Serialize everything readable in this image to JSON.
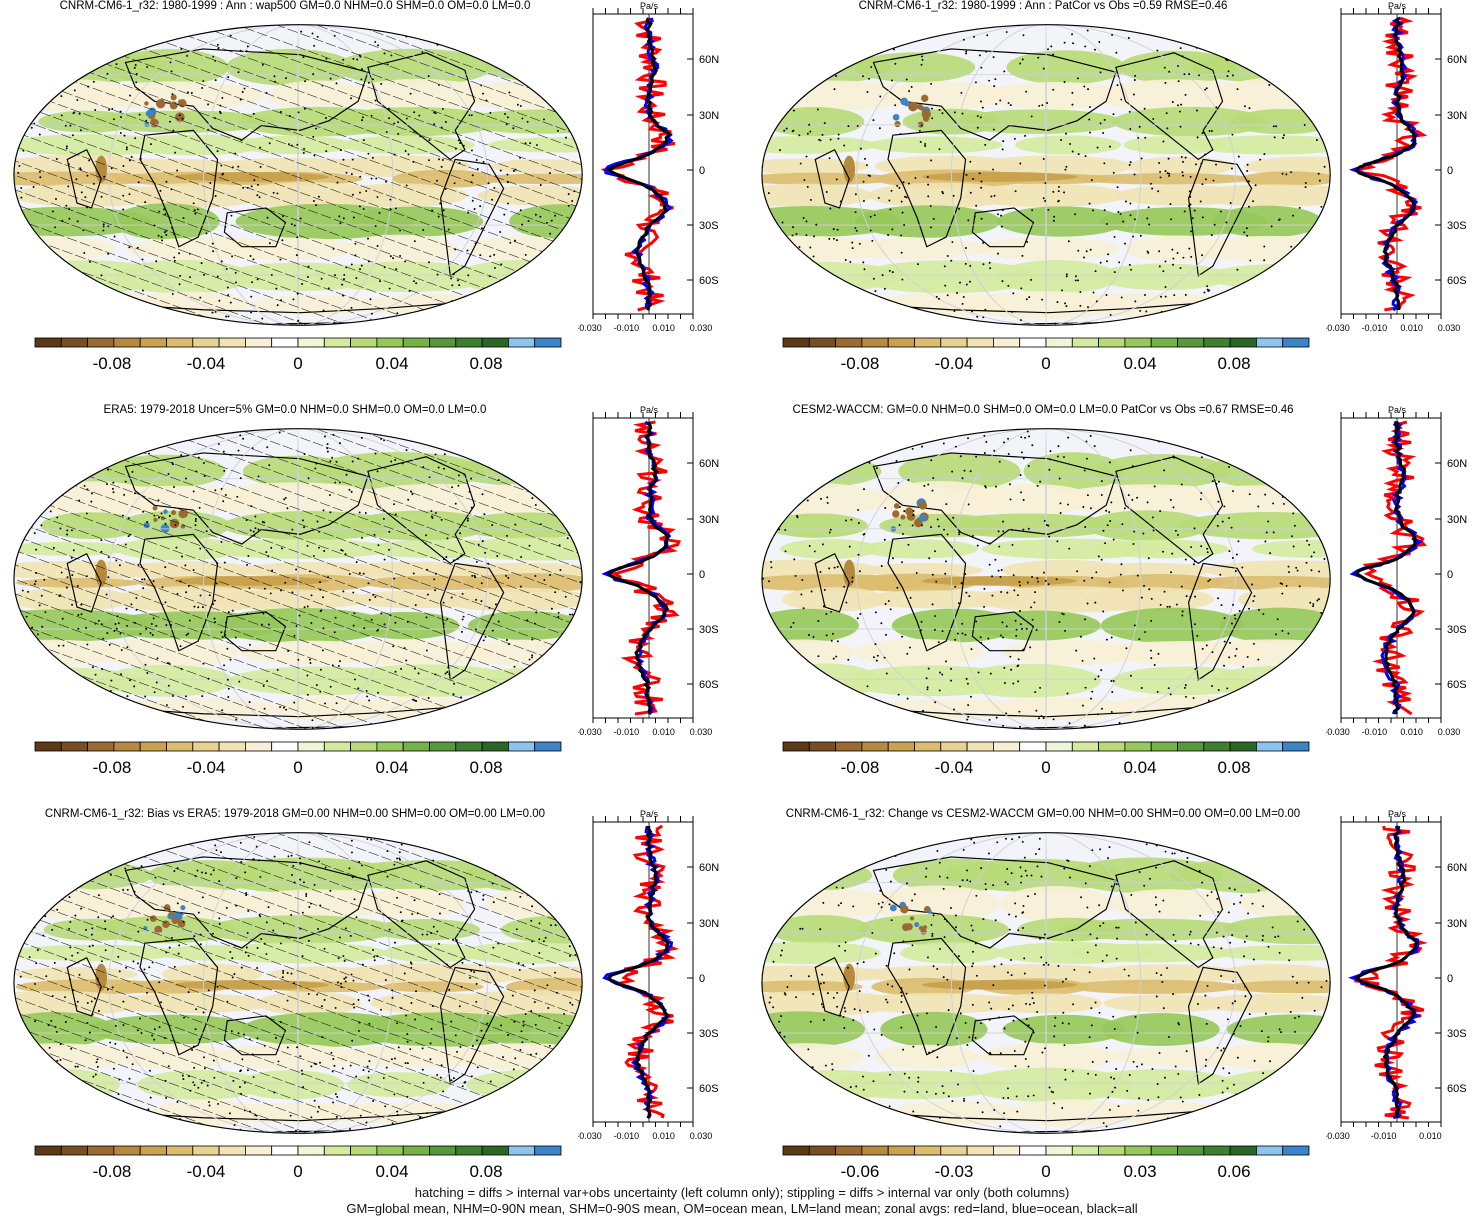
{
  "colors": {
    "land": "#ff0000",
    "ocean": "#0000ff",
    "all": "#000000",
    "ocean_fill": "#f3f4fa",
    "palette": [
      "#5c3a18",
      "#7a4e25",
      "#9a6a32",
      "#b58a3e",
      "#c9a24e",
      "#dcbd6e",
      "#e8d292",
      "#f1e3b4",
      "#f8f0d6",
      "#ffffff",
      "#eef7d8",
      "#d4ea9f",
      "#b7da76",
      "#97c85a",
      "#76b347",
      "#57983a",
      "#3f7f30",
      "#2c6626",
      "#8cc4ee",
      "#3c84c8"
    ]
  },
  "units": "Pa/s",
  "panels": [
    {
      "id": "p1",
      "title": "CNRM-CM6-1_r32: 1980-1999 : Ann : wap500 GM=0.0 NHM=0.0 SHM=0.0 OM=0.0 LM=0.0",
      "hatch": true,
      "zonal_ticks": [
        "-0.030",
        "-0.010",
        "0.010",
        "0.030"
      ],
      "cbar_labels": [
        "-0.08",
        "-0.04",
        "0",
        "0.04",
        "0.08"
      ],
      "lat_labels": [
        "60N",
        "30N",
        "0",
        "30S",
        "60S"
      ]
    },
    {
      "id": "p2",
      "title": "CNRM-CM6-1_r32: 1980-1999 : Ann : PatCor vs Obs =0.59 RMSE=0.46",
      "hatch": false,
      "zonal_ticks": [
        "-0.030",
        "-0.010",
        "0.010",
        "0.030"
      ],
      "cbar_labels": [
        "-0.08",
        "-0.04",
        "0",
        "0.04",
        "0.08"
      ],
      "lat_labels": [
        "60N",
        "30N",
        "0",
        "30S",
        "60S"
      ]
    },
    {
      "id": "p3",
      "title": "ERA5: 1979-2018 Uncer=5% GM=0.0 NHM=0.0 SHM=0.0 OM=0.0 LM=0.0",
      "hatch": true,
      "zonal_ticks": [
        "-0.030",
        "-0.010",
        "0.010",
        "0.030"
      ],
      "cbar_labels": [
        "-0.08",
        "-0.04",
        "0",
        "0.04",
        "0.08"
      ],
      "lat_labels": [
        "60N",
        "30N",
        "0",
        "30S",
        "60S"
      ]
    },
    {
      "id": "p4",
      "title": "CESM2-WACCM: GM=0.0 NHM=0.0 SHM=0.0 OM=0.0 LM=0.0 PatCor vs Obs =0.67 RMSE=0.46",
      "hatch": false,
      "zonal_ticks": [
        "-0.030",
        "-0.010",
        "0.010",
        "0.030"
      ],
      "cbar_labels": [
        "-0.08",
        "-0.04",
        "0",
        "0.04",
        "0.08"
      ],
      "lat_labels": [
        "60N",
        "30N",
        "0",
        "30S",
        "60S"
      ]
    },
    {
      "id": "p5",
      "title": "CNRM-CM6-1_r32: Bias vs ERA5: 1979-2018 GM=0.00 NHM=0.00 SHM=0.00 OM=0.00 LM=0.00",
      "hatch": true,
      "zonal_ticks": [
        "-0.030",
        "-0.010",
        "0.010",
        "0.030"
      ],
      "cbar_labels": [
        "-0.08",
        "-0.04",
        "0",
        "0.04",
        "0.08"
      ],
      "lat_labels": [
        "60N",
        "30N",
        "0",
        "30S",
        "60S"
      ]
    },
    {
      "id": "p6",
      "title": "CNRM-CM6-1_r32: Change vs CESM2-WACCM GM=0.00 NHM=0.00 SHM=0.00 OM=0.00 LM=0.00",
      "hatch": false,
      "zonal_ticks": [
        "-0.030",
        "-0.010",
        "0.010"
      ],
      "cbar_labels": [
        "-0.06",
        "-0.03",
        "0",
        "0.03",
        "0.06"
      ],
      "lat_labels": [
        "60N",
        "30N",
        "0",
        "30S",
        "60S"
      ]
    }
  ],
  "footer": {
    "line1": "hatching = diffs > internal var+obs uncertainty (left column only); stippling = diffs > internal var only (both columns)",
    "line2": "GM=global mean, NHM=0-90N mean, SHM=0-90S mean, OM=ocean mean, LM=land mean; zonal avgs: red=land, blue=ocean, black=all"
  },
  "chart_data": [
    {
      "type": "heatmap",
      "title": "CNRM-CM6-1_r32: 1980-1999 : Ann : wap500 GM=0.0 NHM=0.0 SHM=0.0 OM=0.0 LM=0.0",
      "colorbar_ticks": [
        -0.08,
        -0.04,
        0,
        0.04,
        0.08
      ],
      "zonal_xticks": [
        -0.03,
        -0.01,
        0.01,
        0.03
      ],
      "zonal_ylabels": [
        "60N",
        "30N",
        "0",
        "30S",
        "60S"
      ],
      "unit": "Pa/s"
    },
    {
      "type": "heatmap",
      "title": "CNRM-CM6-1_r32: 1980-1999 : Ann : PatCor vs Obs =0.59 RMSE=0.46",
      "colorbar_ticks": [
        -0.08,
        -0.04,
        0,
        0.04,
        0.08
      ],
      "zonal_xticks": [
        -0.03,
        -0.01,
        0.01,
        0.03
      ],
      "unit": "Pa/s"
    },
    {
      "type": "heatmap",
      "title": "ERA5: 1979-2018 Uncer=5% GM=0.0 NHM=0.0 SHM=0.0 OM=0.0 LM=0.0",
      "colorbar_ticks": [
        -0.08,
        -0.04,
        0,
        0.04,
        0.08
      ],
      "zonal_xticks": [
        -0.03,
        -0.01,
        0.01,
        0.03
      ],
      "unit": "Pa/s"
    },
    {
      "type": "heatmap",
      "title": "CESM2-WACCM: GM=0.0 NHM=0.0 SHM=0.0 OM=0.0 LM=0.0 PatCor vs Obs =0.67 RMSE=0.46",
      "colorbar_ticks": [
        -0.08,
        -0.04,
        0,
        0.04,
        0.08
      ],
      "zonal_xticks": [
        -0.03,
        -0.01,
        0.01,
        0.03
      ],
      "unit": "Pa/s"
    },
    {
      "type": "heatmap",
      "title": "CNRM-CM6-1_r32: Bias vs ERA5: 1979-2018 GM=0.00 NHM=0.00 SHM=0.00 OM=0.00 LM=0.00",
      "colorbar_ticks": [
        -0.08,
        -0.04,
        0,
        0.04,
        0.08
      ],
      "zonal_xticks": [
        -0.03,
        -0.01,
        0.01,
        0.03
      ],
      "unit": "Pa/s"
    },
    {
      "type": "heatmap",
      "title": "CNRM-CM6-1_r32: Change vs CESM2-WACCM GM=0.00 NHM=0.00 SHM=0.00 OM=0.00 LM=0.00",
      "colorbar_ticks": [
        -0.06,
        -0.03,
        0,
        0.03,
        0.06
      ],
      "zonal_xticks": [
        -0.03,
        -0.01,
        0.01
      ],
      "unit": "Pa/s"
    }
  ]
}
